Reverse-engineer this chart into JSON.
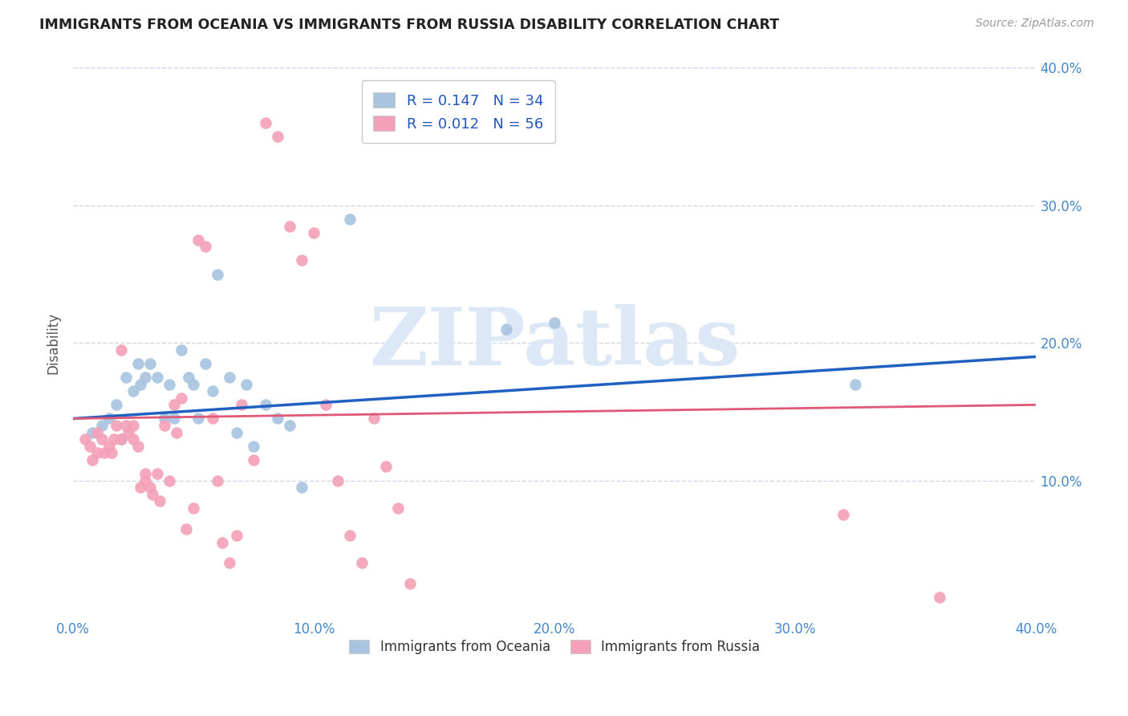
{
  "title": "IMMIGRANTS FROM OCEANIA VS IMMIGRANTS FROM RUSSIA DISABILITY CORRELATION CHART",
  "source": "Source: ZipAtlas.com",
  "ylabel": "Disability",
  "xlim": [
    0.0,
    0.4
  ],
  "ylim": [
    0.0,
    0.4
  ],
  "xtick_labels": [
    "0.0%",
    "10.0%",
    "20.0%",
    "30.0%",
    "40.0%"
  ],
  "xtick_vals": [
    0.0,
    0.1,
    0.2,
    0.3,
    0.4
  ],
  "ytick_vals": [
    0.1,
    0.2,
    0.3,
    0.4
  ],
  "oceania_R": "0.147",
  "oceania_N": "34",
  "russia_R": "0.012",
  "russia_N": "56",
  "oceania_color": "#a8c4e0",
  "russia_color": "#f4a0b8",
  "oceania_line_color": "#2060c0",
  "russia_line_color": "#e05878",
  "legend_label_oceania": "Immigrants from Oceania",
  "legend_label_russia": "Immigrants from Russia",
  "background_color": "#ffffff",
  "grid_color": "#d0d8e8",
  "watermark": "ZIPatlas",
  "oceania_x": [
    0.008,
    0.012,
    0.015,
    0.018,
    0.02,
    0.022,
    0.025,
    0.027,
    0.028,
    0.03,
    0.032,
    0.035,
    0.038,
    0.04,
    0.042,
    0.045,
    0.048,
    0.05,
    0.052,
    0.055,
    0.058,
    0.06,
    0.065,
    0.068,
    0.072,
    0.075,
    0.08,
    0.085,
    0.09,
    0.095,
    0.115,
    0.18,
    0.2,
    0.325
  ],
  "oceania_y": [
    0.135,
    0.14,
    0.145,
    0.155,
    0.13,
    0.175,
    0.165,
    0.185,
    0.17,
    0.175,
    0.185,
    0.175,
    0.145,
    0.17,
    0.145,
    0.195,
    0.175,
    0.17,
    0.145,
    0.185,
    0.165,
    0.25,
    0.175,
    0.135,
    0.17,
    0.125,
    0.155,
    0.145,
    0.14,
    0.095,
    0.29,
    0.21,
    0.215,
    0.17
  ],
  "russia_x": [
    0.005,
    0.007,
    0.008,
    0.01,
    0.01,
    0.012,
    0.013,
    0.015,
    0.016,
    0.017,
    0.018,
    0.02,
    0.02,
    0.022,
    0.023,
    0.025,
    0.025,
    0.027,
    0.028,
    0.03,
    0.03,
    0.032,
    0.033,
    0.035,
    0.036,
    0.038,
    0.04,
    0.042,
    0.043,
    0.045,
    0.047,
    0.05,
    0.052,
    0.055,
    0.058,
    0.06,
    0.062,
    0.065,
    0.068,
    0.07,
    0.075,
    0.08,
    0.085,
    0.09,
    0.095,
    0.1,
    0.105,
    0.11,
    0.115,
    0.12,
    0.125,
    0.13,
    0.135,
    0.14,
    0.32,
    0.36
  ],
  "russia_y": [
    0.13,
    0.125,
    0.115,
    0.135,
    0.12,
    0.13,
    0.12,
    0.125,
    0.12,
    0.13,
    0.14,
    0.13,
    0.195,
    0.14,
    0.135,
    0.13,
    0.14,
    0.125,
    0.095,
    0.105,
    0.1,
    0.095,
    0.09,
    0.105,
    0.085,
    0.14,
    0.1,
    0.155,
    0.135,
    0.16,
    0.065,
    0.08,
    0.275,
    0.27,
    0.145,
    0.1,
    0.055,
    0.04,
    0.06,
    0.155,
    0.115,
    0.36,
    0.35,
    0.285,
    0.26,
    0.28,
    0.155,
    0.1,
    0.06,
    0.04,
    0.145,
    0.11,
    0.08,
    0.025,
    0.075,
    0.015
  ]
}
